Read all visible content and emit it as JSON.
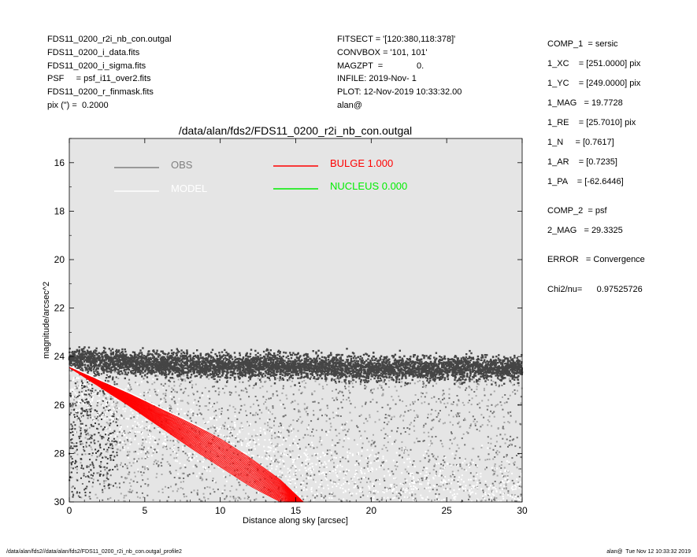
{
  "header": {
    "left_lines": [
      "FDS11_0200_r2i_nb_con.outgal",
      "FDS11_0200_i_data.fits",
      "FDS11_0200_i_sigma.fits",
      "PSF     = psf_i11_over2.fits",
      "FDS11_0200_r_finmask.fits",
      "pix (\") =  0.2000"
    ],
    "mid_lines": [
      "FITSECT = '[120:380,118:378]'",
      "CONVBOX = '101, 101'",
      "MAGZPT  =              0.",
      "INFILE: 2019-Nov- 1",
      "PLOT: 12-Nov-2019 10:33:32.00",
      "alan@"
    ]
  },
  "side_panel": [
    "COMP_1  = sersic",
    "1_XC    = [251.0000] pix",
    "1_YC    = [249.0000] pix",
    "1_MAG   = 19.7728",
    "1_RE    = [25.7010] pix",
    "1_N     = [0.7617]",
    "1_AR    = [0.7235]",
    "1_PA    = [-62.6446]",
    "COMP_2  = psf",
    "2_MAG   = 29.3325",
    "ERROR   = Convergence",
    "Chi2/nu=      0.97525726"
  ],
  "footer": {
    "left": "/data/alan/fds2//data/alan/fds2/FDS11_0200_r2i_nb_con.outgal_profile2",
    "right": "alan@  Tue Nov 12 10:33:32 2019"
  },
  "chart_data": {
    "type": "scatter",
    "title": "/data/alan/fds2/FDS11_0200_r2i_nb_con.outgal",
    "xlabel": "Distance along sky [arcsec]",
    "ylabel": "magnitude/arcsec^2",
    "xlim": [
      0,
      30
    ],
    "ylim": [
      30,
      15
    ],
    "y_inverted": true,
    "grid": false,
    "background_color": "#e5e5e5",
    "x_ticks": [
      0,
      5,
      10,
      15,
      20,
      25,
      30
    ],
    "y_ticks": [
      16,
      18,
      20,
      22,
      24,
      26,
      28,
      30
    ],
    "legend": [
      {
        "label": "OBS",
        "color": "#808080",
        "column": "left"
      },
      {
        "label": "MODEL",
        "color": "#ffffff",
        "column": "left"
      },
      {
        "label": "BULGE  1.000",
        "color": "#ff0000",
        "column": "right"
      },
      {
        "label": "NUCLEUS  0.000",
        "color": "#00ee00",
        "column": "right"
      }
    ],
    "series": [
      {
        "name": "OBS",
        "color": "#404040",
        "style": "points",
        "description_points": {
          "x": [
            0,
            2,
            5,
            10,
            15,
            20,
            25,
            30
          ],
          "y": [
            24.1,
            24.2,
            24.3,
            24.4,
            24.4,
            24.5,
            24.5,
            24.5
          ]
        }
      },
      {
        "name": "MODEL",
        "color": "#ffffff",
        "style": "points",
        "description_points": {
          "x": [
            0,
            5,
            10,
            15,
            20,
            25,
            30
          ],
          "y": [
            24.5,
            26.0,
            27.0,
            27.8,
            28.4,
            28.9,
            29.3
          ]
        }
      },
      {
        "name": "BULGE",
        "color": "#ff0000",
        "style": "band",
        "x": [
          0,
          2,
          4,
          6,
          8,
          10,
          12,
          14,
          15.5
        ],
        "y_low": [
          24.45,
          25.0,
          25.55,
          26.15,
          26.75,
          27.4,
          28.2,
          29.1,
          30.0
        ],
        "y_high": [
          24.45,
          25.25,
          26.05,
          26.9,
          27.75,
          28.55,
          29.35,
          30.0,
          30.0
        ]
      }
    ]
  }
}
